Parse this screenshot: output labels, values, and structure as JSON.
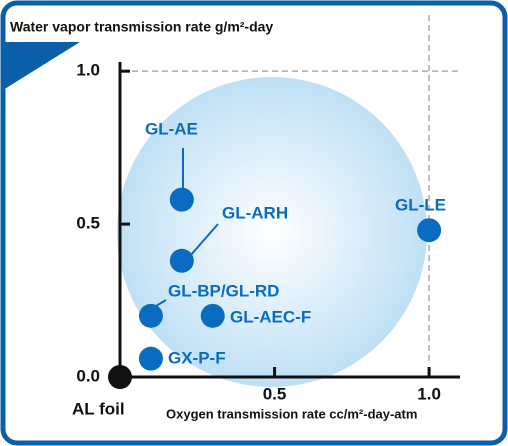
{
  "chart_data": {
    "type": "scatter",
    "title": "Water vapor transmission rate g/m²-day",
    "x_label": "Oxygen transmission rate cc/m²-day-atm",
    "xlim": [
      0,
      1.1
    ],
    "ylim": [
      0,
      1.03
    ],
    "xticks": [
      0.5,
      {
        "value": 1,
        "label": "1.0"
      }
    ],
    "yticks": [
      {
        "value": 0,
        "label": "0.0"
      },
      0.5,
      {
        "value": 1,
        "label": "1.0"
      }
    ],
    "color": "#0a6cc0",
    "points": [
      {
        "label": "GL-AE",
        "x": 0.2,
        "y": 0.58
      },
      {
        "label": "GL-ARH",
        "x": 0.2,
        "y": 0.38
      },
      {
        "label": "GL-BP/GL-RD",
        "x": 0.1,
        "y": 0.2
      },
      {
        "label": "GL-AEC-F",
        "x": 0.3,
        "y": 0.2
      },
      {
        "label": "GX-P-F",
        "x": 0.1,
        "y": 0.06
      },
      {
        "label": "GL-LE",
        "x": 1.0,
        "y": 0.48
      },
      {
        "label": "AL foil",
        "x": 0,
        "y": 0,
        "color": "#111111"
      }
    ]
  }
}
